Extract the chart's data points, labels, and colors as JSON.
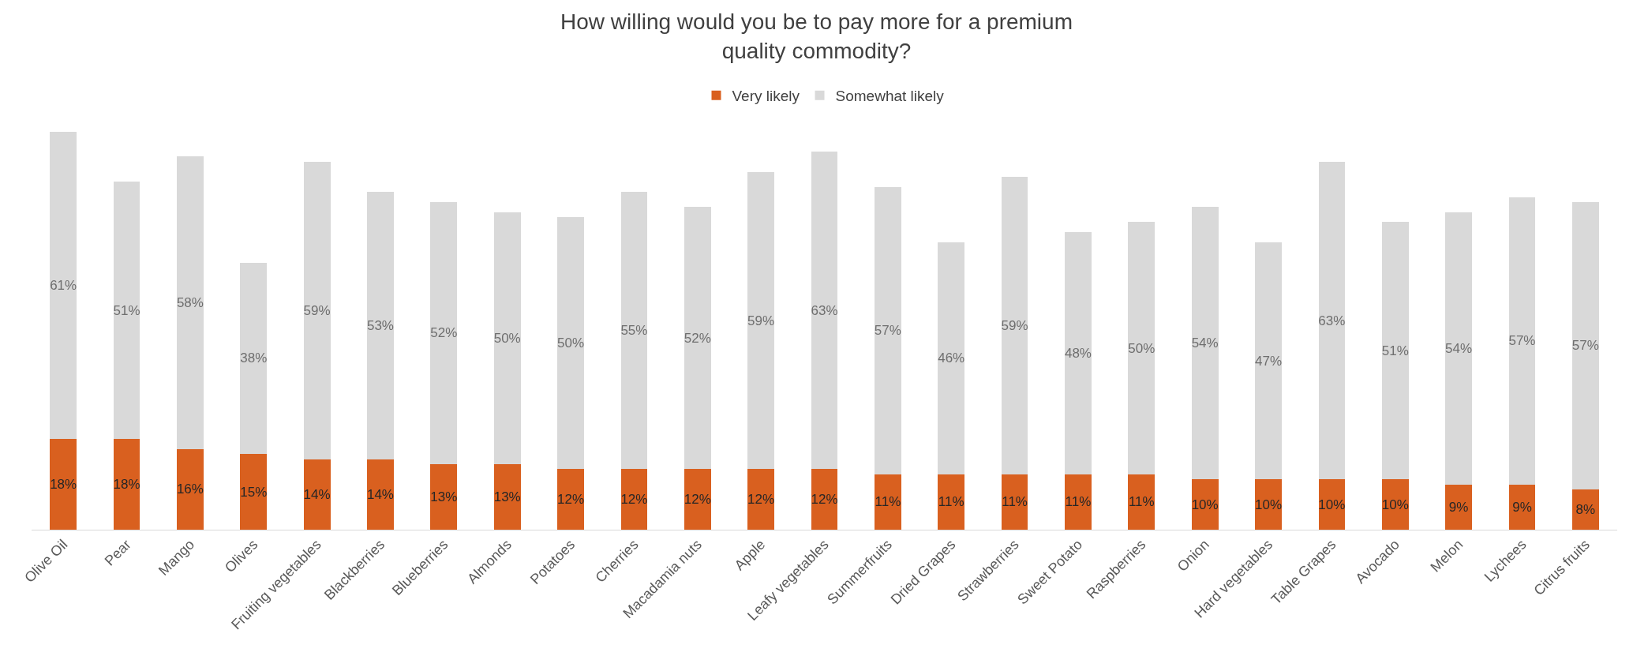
{
  "chart_data": {
    "type": "bar",
    "title": "How willing would you be to pay more for a premium quality commodity?",
    "stacked": true,
    "legend": "top",
    "categories": [
      "Olive Oil",
      "Pear",
      "Mango",
      "Olives",
      "Fruiting vegetables",
      "Blackberries",
      "Blueberries",
      "Almonds",
      "Potatoes",
      "Cherries",
      "Macadamia nuts",
      "Apple",
      "Leafy vegetables",
      "Summerfruits",
      "Dried Grapes",
      "Strawberries",
      "Sweet Potato",
      "Raspberries",
      "Onion",
      "Hard vegetables",
      "Table Grapes",
      "Avocado",
      "Melon",
      "Lychees",
      "Citrus fruits"
    ],
    "series": [
      {
        "name": "Very likely",
        "color": "#d9601f",
        "values": [
          18,
          18,
          16,
          15,
          14,
          14,
          13,
          13,
          12,
          12,
          12,
          12,
          12,
          11,
          11,
          11,
          11,
          11,
          10,
          10,
          10,
          10,
          9,
          9,
          8
        ],
        "value_labels": [
          "18%",
          "18%",
          "16%",
          "15%",
          "14%",
          "14%",
          "13%",
          "13%",
          "12%",
          "12%",
          "12%",
          "12%",
          "12%",
          "11%",
          "11%",
          "11%",
          "11%",
          "11%",
          "10%",
          "10%",
          "10%",
          "10%",
          "9%",
          "9%",
          "8%"
        ]
      },
      {
        "name": "Somewhat likely",
        "color": "#d9d9d9",
        "values": [
          61,
          51,
          58,
          38,
          59,
          53,
          52,
          50,
          50,
          55,
          52,
          59,
          63,
          57,
          46,
          59,
          48,
          50,
          54,
          47,
          63,
          51,
          54,
          57,
          57
        ],
        "value_labels": [
          "61%",
          "51%",
          "58%",
          "38%",
          "59%",
          "53%",
          "52%",
          "50%",
          "50%",
          "55%",
          "52%",
          "59%",
          "63%",
          "57%",
          "46%",
          "59%",
          "48%",
          "50%",
          "54%",
          "47%",
          "63%",
          "51%",
          "54%",
          "57%",
          "57%"
        ]
      }
    ]
  }
}
